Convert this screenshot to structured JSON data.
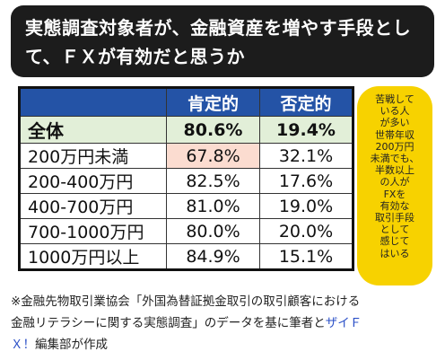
{
  "title_lines": [
    "実態調査対象者が、金融資産を増やす手段とし",
    "て、ＦＸが有効だと思うか"
  ],
  "chart_data": {
    "type": "table",
    "columns": [
      "肯定的",
      "否定的"
    ],
    "rows": [
      {
        "label": "全体",
        "values": [
          "80.6%",
          "19.4%"
        ]
      },
      {
        "label": "200万円未満",
        "values": [
          "67.8%",
          "32.1%"
        ]
      },
      {
        "label": "200-400万円",
        "values": [
          "82.5%",
          "17.6%"
        ]
      },
      {
        "label": "400-700万円",
        "values": [
          "81.0%",
          "19.0%"
        ]
      },
      {
        "label": "700-1000万円",
        "values": [
          "80.0%",
          "20.0%"
        ]
      },
      {
        "label": "1000万円以上",
        "values": [
          "84.9%",
          "15.1%"
        ]
      }
    ],
    "numeric": {
      "categories": [
        "全体",
        "200万円未満",
        "200-400万円",
        "400-700万円",
        "700-1000万円",
        "1000万円以上"
      ],
      "series": [
        {
          "name": "肯定的",
          "values": [
            80.6,
            67.8,
            82.5,
            81.0,
            80.0,
            84.9
          ]
        },
        {
          "name": "否定的",
          "values": [
            19.4,
            32.1,
            17.6,
            19.0,
            20.0,
            15.1
          ]
        }
      ]
    }
  },
  "colors": {
    "header": "#2453a6",
    "total_row": "#e2efd8",
    "highlight": "#fbdcd0",
    "callout": "#f7d200",
    "banner": "#1c1c1c"
  },
  "callout_lines": [
    "苦戦して",
    "いる人",
    "が多い",
    "世帯年収",
    "200万円",
    "未満でも、",
    "半数以上",
    "の人が",
    "FXを",
    "有効な",
    "取引手段",
    "として",
    "感じて",
    "はいる"
  ],
  "footnote": {
    "line1": "※金融先物取引業協会「外国為替証拠金取引の取引顧客における",
    "line2_text": "金融リテラシーに関する実態調査」のデータを基に筆者と",
    "line2_link": "ザイＦ",
    "line3_link": "Ｘ！",
    "line3_text": "編集部が作成"
  }
}
